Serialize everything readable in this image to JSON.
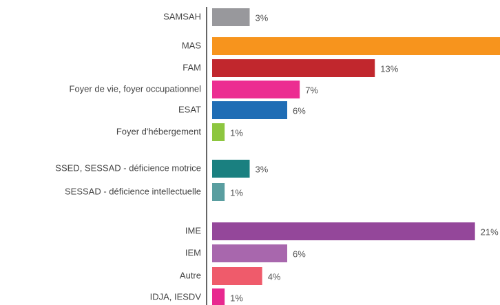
{
  "chart_data": {
    "type": "bar",
    "orientation": "horizontal",
    "categories": [
      "SAMSAH",
      "MAS",
      "FAM",
      "Foyer de vie, foyer occupationnel",
      "ESAT",
      "Foyer d'hébergement",
      "SSED, SESSAD - déficience motrice",
      "SESSAD - déficience intellectuelle",
      "IME",
      "IEM",
      "Autre",
      "IDJA, IESDV"
    ],
    "values": [
      3,
      23,
      13,
      7,
      6,
      1,
      3,
      1,
      21,
      6,
      4,
      1
    ],
    "value_labels": [
      "3%",
      null,
      "13%",
      "7%",
      "6%",
      "1%",
      "3%",
      "1%",
      "21%",
      "6%",
      "4%",
      "1%"
    ],
    "colors": [
      "#98989c",
      "#f7941d",
      "#c1272d",
      "#ec2d91",
      "#1f6db5",
      "#8dc63f",
      "#1a8080",
      "#5a9ea0",
      "#94479a",
      "#a867ad",
      "#ef5b6b",
      "#e8288f"
    ],
    "xlim": [
      0,
      23
    ]
  }
}
